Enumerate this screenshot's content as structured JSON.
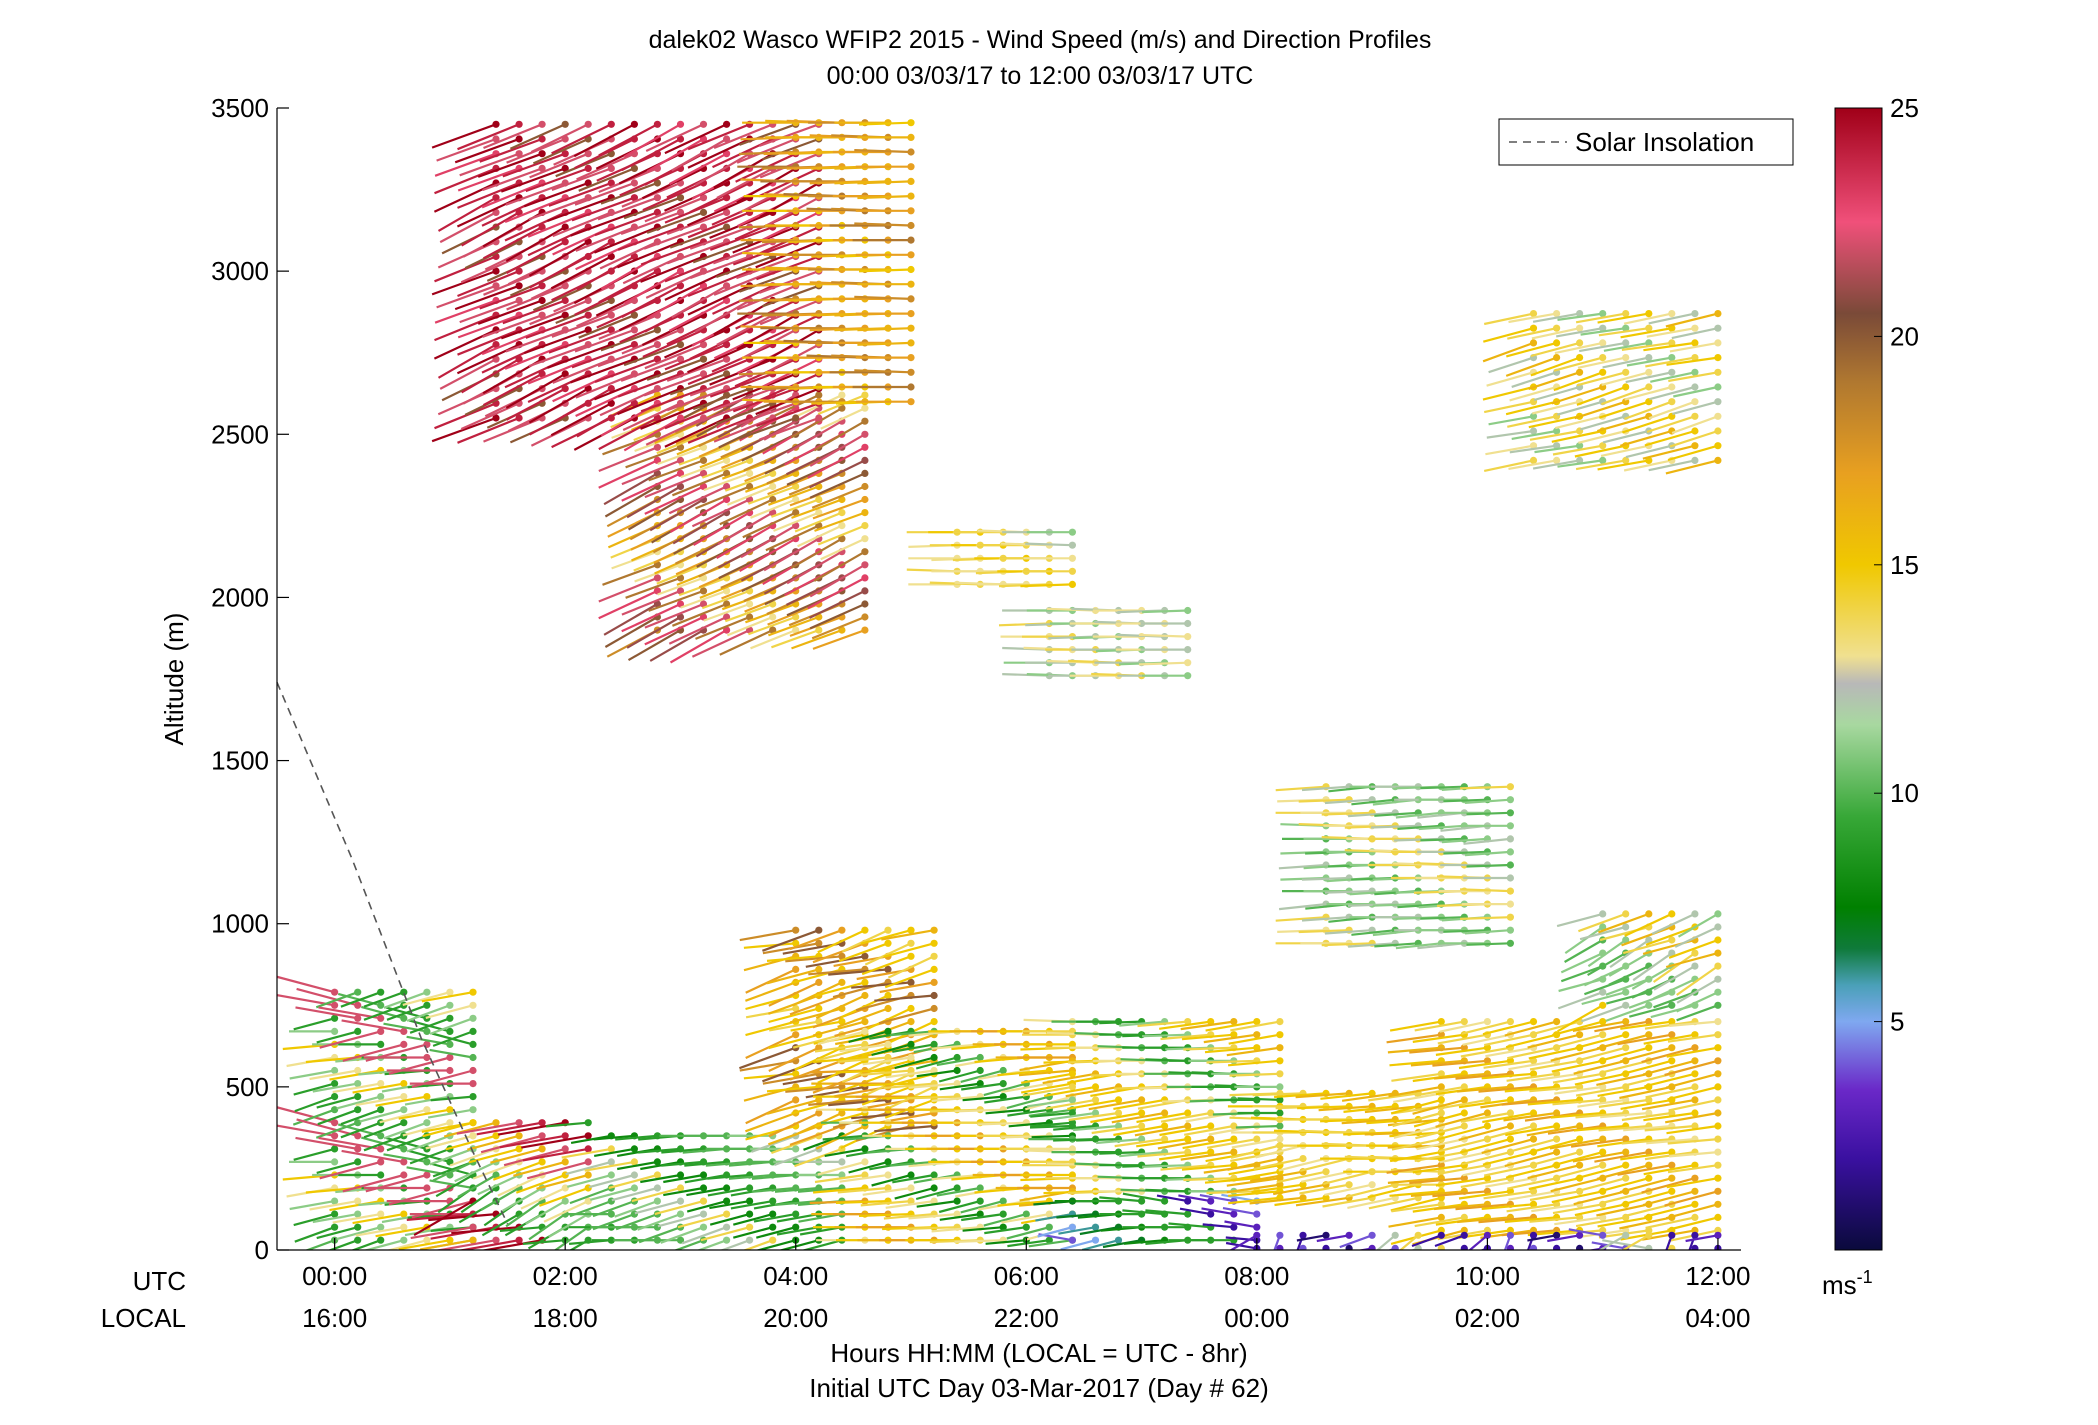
{
  "chart_data": {
    "type": "scatter",
    "subtype": "wind-barb-profile",
    "title_line1": "dalek02 Wasco WFIP2 2015 - Wind Speed (m/s) and Direction Profiles",
    "title_line2": "00:00 03/03/17 to 12:00 03/03/17  UTC",
    "ylabel": "Altitude (m)",
    "xlabel_line1": "Hours HH:MM  (LOCAL = UTC - 8hr)",
    "xlabel_line2": "Initial UTC Day 03-Mar-2017 (Day # 62)",
    "row_label_utc": "UTC",
    "row_label_local": "LOCAL",
    "ylim": [
      0,
      3500
    ],
    "xlim_hours": [
      -0.5,
      12.2
    ],
    "y_ticks": [
      {
        "value": 0,
        "label": "0"
      },
      {
        "value": 500,
        "label": "500"
      },
      {
        "value": 1000,
        "label": "1000"
      },
      {
        "value": 1500,
        "label": "1500"
      },
      {
        "value": 2000,
        "label": "2000"
      },
      {
        "value": 2500,
        "label": "2500"
      },
      {
        "value": 3000,
        "label": "3000"
      },
      {
        "value": 3500,
        "label": "3500"
      }
    ],
    "x_ticks": [
      {
        "hour": 0,
        "utc": "00:00",
        "local": "16:00"
      },
      {
        "hour": 2,
        "utc": "02:00",
        "local": "18:00"
      },
      {
        "hour": 4,
        "utc": "04:00",
        "local": "20:00"
      },
      {
        "hour": 6,
        "utc": "06:00",
        "local": "22:00"
      },
      {
        "hour": 8,
        "utc": "08:00",
        "local": "00:00"
      },
      {
        "hour": 10,
        "utc": "10:00",
        "local": "02:00"
      },
      {
        "hour": 12,
        "utc": "12:00",
        "local": "04:00"
      }
    ],
    "legend": {
      "entry": "Solar Insolation",
      "location": "top-right"
    },
    "colorbar": {
      "min": 0,
      "max": 25,
      "ticks": [
        {
          "value": 5,
          "label": "5"
        },
        {
          "value": 10,
          "label": "10"
        },
        {
          "value": 15,
          "label": "15"
        },
        {
          "value": 20,
          "label": "20"
        },
        {
          "value": 25,
          "label": "25"
        }
      ],
      "unit_base": "ms",
      "unit_exp": "-1",
      "stops": [
        {
          "v": 0,
          "c": "#0a0a3c"
        },
        {
          "v": 2,
          "c": "#3a10a0"
        },
        {
          "v": 3.5,
          "c": "#6a28c8"
        },
        {
          "v": 5,
          "c": "#7fa8f0"
        },
        {
          "v": 5.8,
          "c": "#4aa0b8"
        },
        {
          "v": 6.6,
          "c": "#0f7a3a"
        },
        {
          "v": 7.5,
          "c": "#008000"
        },
        {
          "v": 9.5,
          "c": "#38a838"
        },
        {
          "v": 11.5,
          "c": "#a8d8a0"
        },
        {
          "v": 12.4,
          "c": "#b8b8b8"
        },
        {
          "v": 13.0,
          "c": "#f0e090"
        },
        {
          "v": 15,
          "c": "#f0c800"
        },
        {
          "v": 17,
          "c": "#e8a020"
        },
        {
          "v": 19,
          "c": "#b07830"
        },
        {
          "v": 20.5,
          "c": "#7a4a38"
        },
        {
          "v": 22.5,
          "c": "#f0507a"
        },
        {
          "v": 25,
          "c": "#a00018"
        }
      ]
    },
    "solar_insolation_line": [
      {
        "hour": -0.5,
        "alt": 1740
      },
      {
        "hour": 0.15,
        "alt": 1200
      },
      {
        "hour": 0.75,
        "alt": 650
      },
      {
        "hour": 1.2,
        "alt": 300
      },
      {
        "hour": 1.5,
        "alt": 80
      }
    ],
    "barb_clusters": [
      {
        "h0": 0.0,
        "h1": 1.2,
        "dh": 0.2,
        "a0": 30,
        "a1": 800,
        "da": 40,
        "s": [
          10,
          9,
          9,
          11,
          13,
          15,
          11,
          9,
          22,
          22
        ],
        "dir": [
          250,
          250,
          255,
          260,
          260,
          265,
          270,
          255,
          280,
          285
        ]
      },
      {
        "h0": 1.2,
        "h1": 2.2,
        "dh": 0.2,
        "a0": 30,
        "a1": 400,
        "da": 40,
        "s": [
          9,
          9,
          10,
          11,
          13,
          15,
          16,
          22,
          24,
          25
        ],
        "dir": [
          245,
          250,
          255,
          255,
          260,
          260,
          265,
          240,
          235,
          240
        ]
      },
      {
        "h0": 2.4,
        "h1": 4.4,
        "dh": 0.2,
        "a0": 30,
        "a1": 380,
        "da": 40,
        "s": [
          8,
          8,
          9,
          9,
          10,
          10,
          10,
          11,
          12,
          14
        ],
        "dir": [
          250,
          250,
          255,
          255,
          260,
          260,
          265,
          265,
          270,
          270
        ]
      },
      {
        "h0": 4.0,
        "h1": 5.2,
        "dh": 0.2,
        "a0": 380,
        "a1": 1000,
        "da": 40,
        "s": [
          15,
          16,
          17,
          16,
          15,
          18,
          20,
          17,
          15,
          14
        ],
        "dir": [
          255,
          260,
          255,
          250,
          245,
          255,
          265,
          260,
          250,
          245
        ]
      },
      {
        "h0": 4.6,
        "h1": 6.4,
        "dh": 0.2,
        "a0": 30,
        "a1": 700,
        "da": 40,
        "s": [
          8,
          9,
          10,
          13,
          15,
          16,
          17,
          15,
          14,
          13
        ],
        "dir": [
          255,
          260,
          265,
          270,
          270,
          270,
          270,
          268,
          265,
          262
        ]
      },
      {
        "h0": 6.4,
        "h1": 8.0,
        "dh": 0.2,
        "a0": 30,
        "a1": 160,
        "da": 40,
        "s": [
          2,
          3,
          4,
          5,
          6,
          7,
          8,
          9,
          9,
          9
        ],
        "dir": [
          255,
          260,
          265,
          270,
          275,
          280,
          280,
          280,
          280,
          280
        ]
      },
      {
        "h0": 6.4,
        "h1": 8.2,
        "dh": 0.2,
        "a0": 180,
        "a1": 700,
        "da": 40,
        "s": [
          14,
          15,
          16,
          15,
          14,
          13,
          10,
          9,
          9,
          11
        ],
        "dir": [
          268,
          270,
          272,
          270,
          268,
          265,
          262,
          260,
          260,
          260
        ]
      },
      {
        "h0": 8.2,
        "h1": 9.6,
        "dh": 0.2,
        "a0": 160,
        "a1": 500,
        "da": 40,
        "s": [
          14,
          15,
          16,
          15,
          16,
          14,
          13,
          14,
          15,
          14
        ],
        "dir": [
          270,
          272,
          270,
          268,
          266,
          264,
          262,
          260,
          258,
          256
        ]
      },
      {
        "h0": 9.6,
        "h1": 12.0,
        "dh": 0.2,
        "a0": 60,
        "a1": 730,
        "da": 40,
        "s": [
          14,
          15,
          16,
          17,
          15,
          14,
          13,
          14,
          15,
          16
        ],
        "dir": [
          260,
          262,
          265,
          265,
          262,
          260,
          258,
          256,
          255,
          255
        ]
      },
      {
        "h0": 8.0,
        "h1": 12.0,
        "dh": 0.2,
        "a0": 5,
        "a1": 80,
        "da": 40,
        "s": [
          2,
          3,
          4,
          2,
          1,
          3,
          4,
          12,
          14,
          2
        ],
        "dir": [
          250,
          230,
          200,
          260,
          280,
          240,
          200,
          260,
          250,
          230
        ]
      },
      {
        "h0": 8.6,
        "h1": 10.2,
        "dh": 0.2,
        "a0": 940,
        "a1": 1420,
        "da": 40,
        "s": [
          11,
          10,
          11,
          14,
          13,
          14,
          12,
          10,
          11,
          12
        ],
        "dir": [
          270,
          268,
          266,
          268,
          270,
          272,
          270,
          268,
          266,
          264
        ]
      },
      {
        "h0": 11.0,
        "h1": 12.0,
        "dh": 0.2,
        "a0": 750,
        "a1": 1040,
        "da": 40,
        "s": [
          10,
          11,
          12,
          14,
          16,
          15,
          12,
          11,
          10,
          11
        ],
        "dir": [
          255,
          250,
          245,
          240,
          250,
          255,
          250,
          245,
          240,
          235
        ]
      },
      {
        "h0": 2.8,
        "h1": 4.6,
        "dh": 0.2,
        "a0": 1900,
        "a1": 2620,
        "da": 40,
        "s": [
          13,
          14,
          16,
          17,
          18,
          20,
          21,
          23,
          22,
          19
        ],
        "dir": [
          240,
          245,
          248,
          250,
          250,
          248,
          246,
          244,
          242,
          240
        ]
      },
      {
        "h0": 1.4,
        "h1": 4.2,
        "dh": 0.2,
        "a0": 2550,
        "a1": 3470,
        "da": 45,
        "s": [
          20,
          22,
          24,
          25,
          24,
          23,
          22,
          25,
          24,
          22
        ],
        "dir": [
          245,
          248,
          250,
          250,
          250,
          248,
          246,
          244,
          242,
          240
        ]
      },
      {
        "h0": 4.0,
        "h1": 5.0,
        "dh": 0.2,
        "a0": 2600,
        "a1": 3470,
        "da": 45,
        "s": [
          16,
          17,
          18,
          16,
          15,
          17,
          19,
          18,
          17,
          16
        ],
        "dir": [
          268,
          270,
          272,
          270,
          268,
          270,
          270,
          272,
          270,
          268
        ]
      },
      {
        "h0": 5.4,
        "h1": 6.4,
        "dh": 0.2,
        "a0": 2040,
        "a1": 2200,
        "da": 40,
        "s": [
          13,
          14,
          15,
          14,
          13,
          12,
          11,
          13,
          14,
          13
        ],
        "dir": [
          270,
          270,
          272,
          270,
          268,
          270,
          270,
          272,
          270,
          268
        ]
      },
      {
        "h0": 6.2,
        "h1": 7.4,
        "dh": 0.2,
        "a0": 1760,
        "a1": 1960,
        "da": 40,
        "s": [
          13,
          12,
          11,
          12,
          13,
          14,
          12,
          11,
          13,
          12
        ],
        "dir": [
          270,
          272,
          270,
          268,
          270,
          272,
          270,
          268,
          270,
          272
        ]
      },
      {
        "h0": 10.4,
        "h1": 12.0,
        "dh": 0.2,
        "a0": 2420,
        "a1": 2880,
        "da": 45,
        "s": [
          16,
          15,
          14,
          13,
          12,
          11,
          14,
          15,
          13,
          12
        ],
        "dir": [
          255,
          258,
          260,
          262,
          260,
          258,
          256,
          254,
          252,
          250
        ]
      }
    ]
  }
}
